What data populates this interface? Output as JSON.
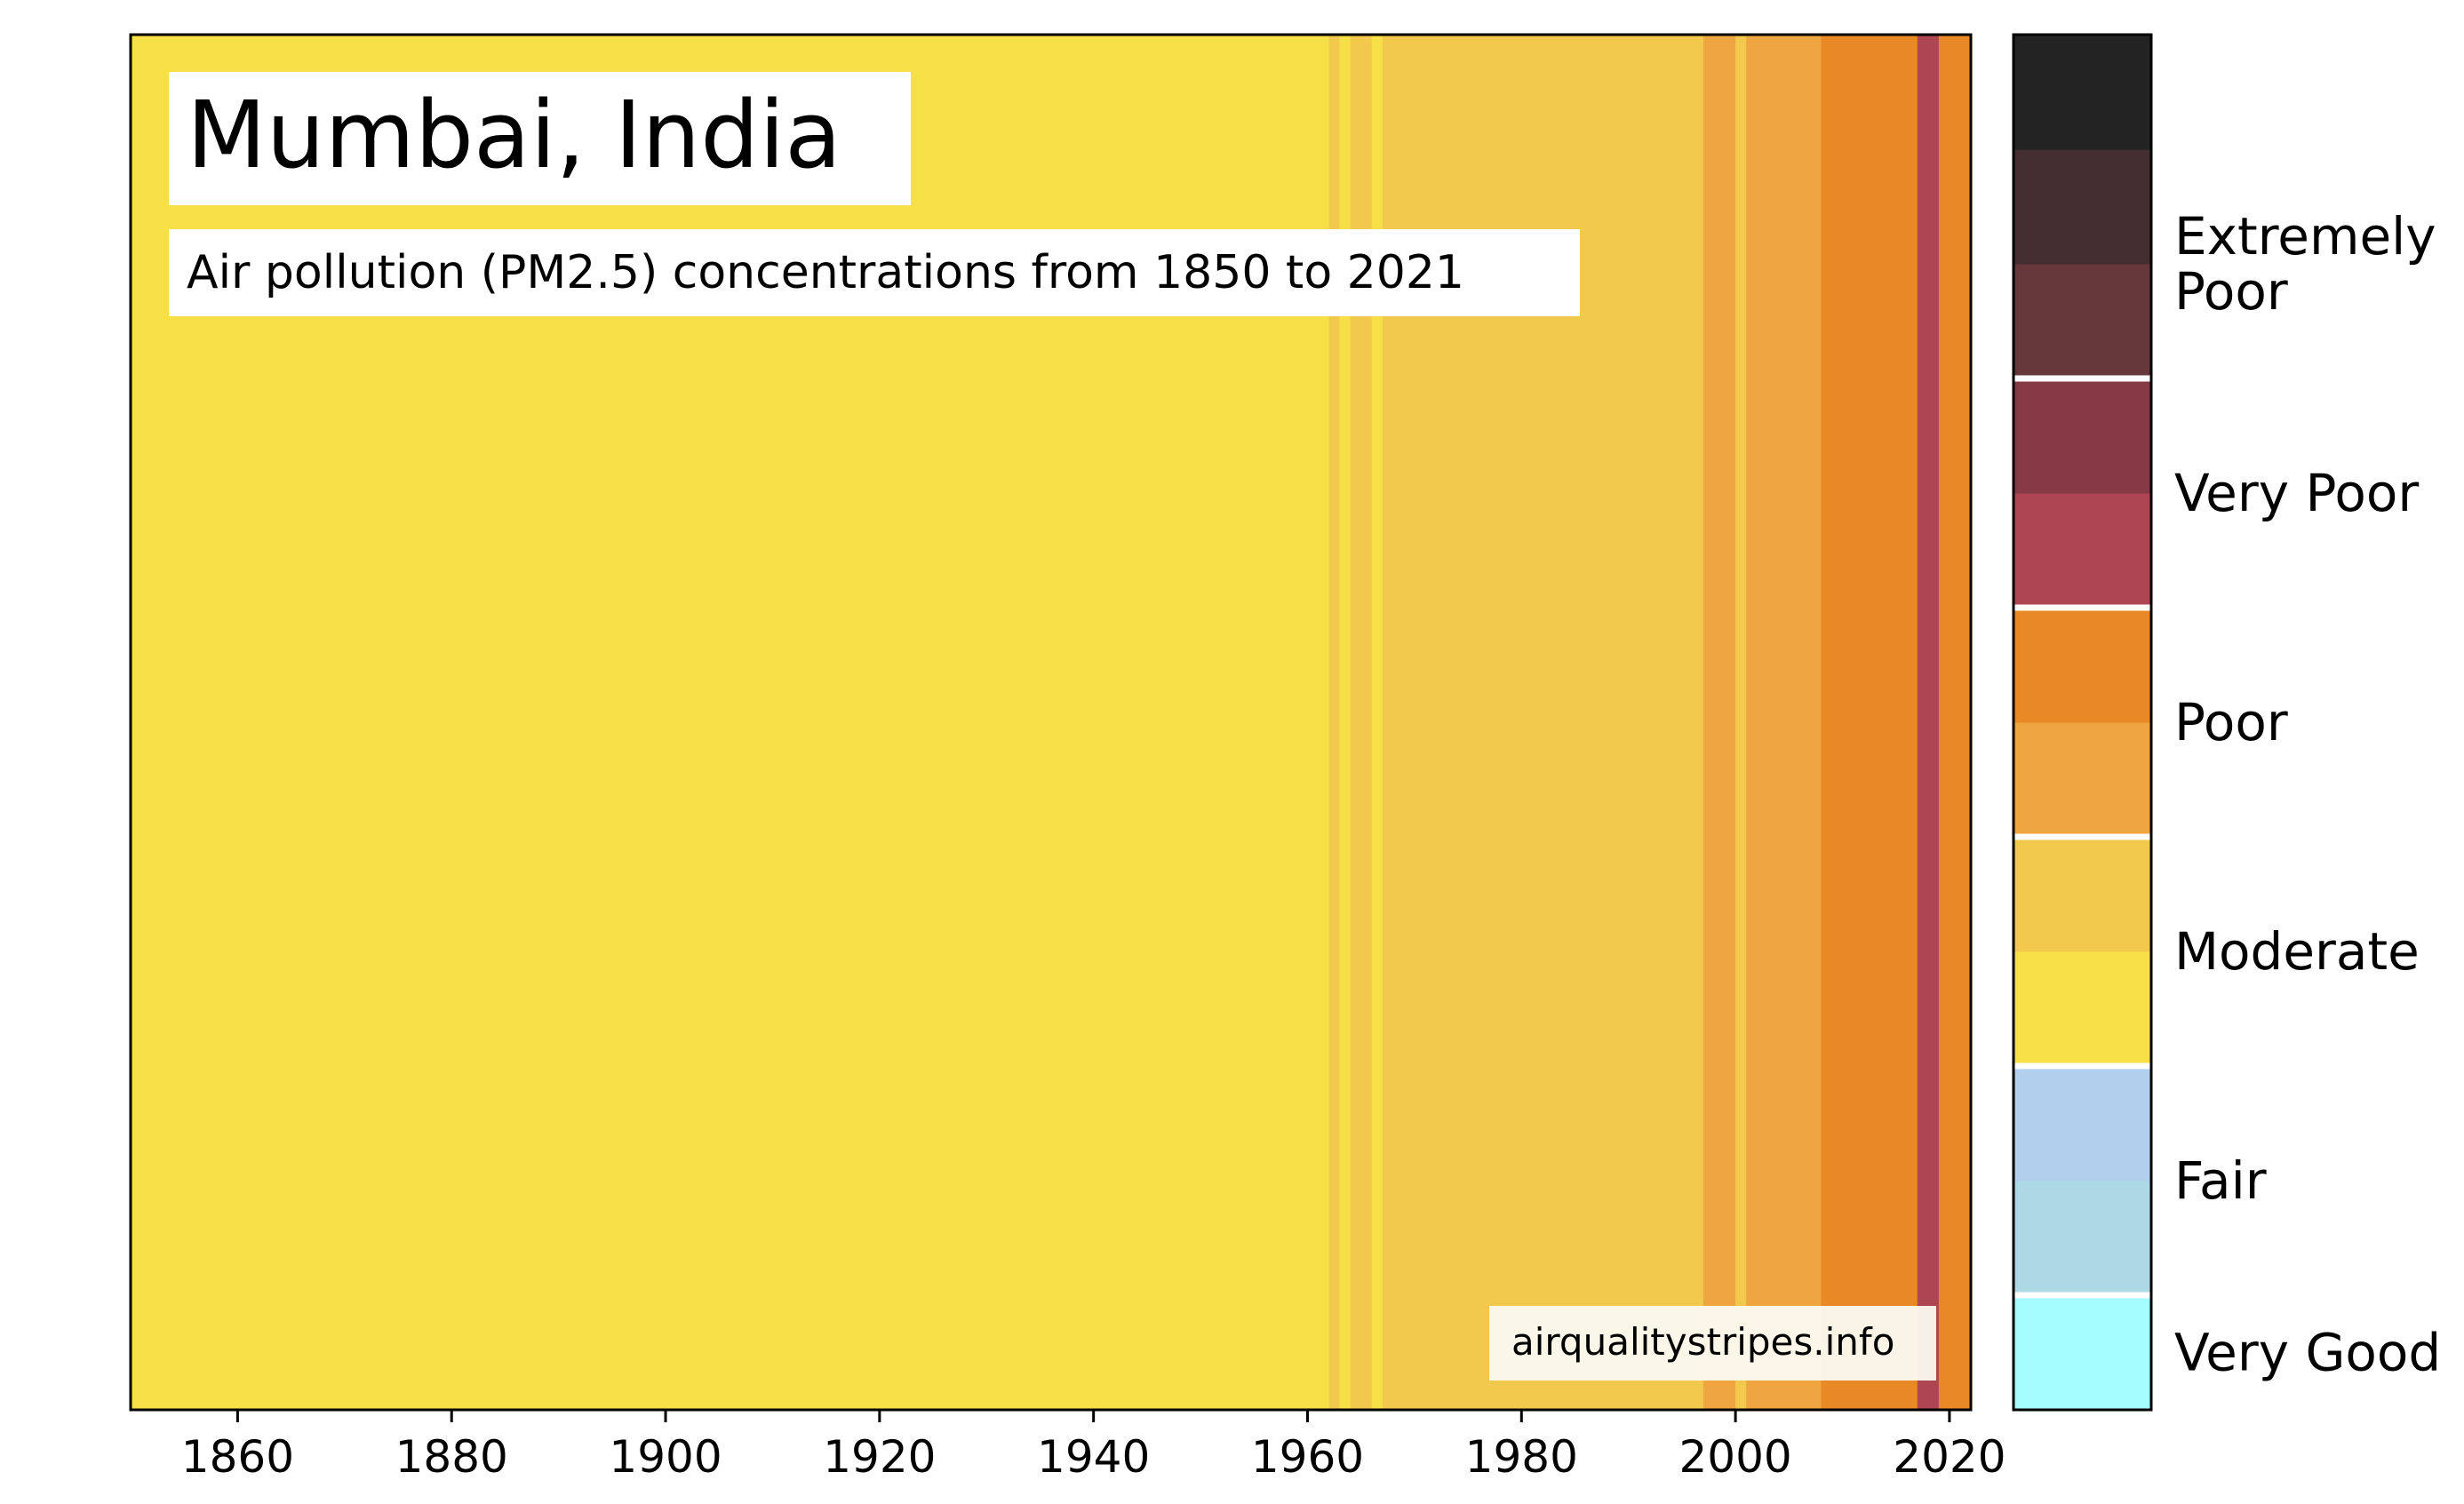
{
  "chart_data": {
    "type": "heatmap",
    "title": "Mumbai, India",
    "subtitle": "Air pollution (PM2.5) concentrations from 1850 to 2021",
    "source": "airqualitystripes.info",
    "x_start": 1850,
    "x_end": 2021,
    "xlim": [
      1850,
      2022
    ],
    "x_ticks": [
      "1860",
      "1880",
      "1900",
      "1920",
      "1940",
      "1960",
      "1980",
      "2000",
      "2020"
    ],
    "colors": {
      "very_good": "#a5fdff",
      "fair_1": "#add8e6",
      "fair_2": "#b2cfee",
      "moderate_1": "#f7df47",
      "moderate_2": "#f2c94c",
      "poor_1": "#efa640",
      "poor_2": "#e88826",
      "very_poor_1": "#ad4652",
      "very_poor_2": "#863a46",
      "extremely_poor_1": "#66383b",
      "extremely_poor_2": "#452e31",
      "extremely_poor_3": "#232323"
    },
    "stripes": [
      {
        "start": 1850,
        "end": 1962,
        "level": "moderate_1"
      },
      {
        "start": 1962,
        "end": 1963,
        "level": "moderate_2"
      },
      {
        "start": 1963,
        "end": 1964,
        "level": "moderate_1"
      },
      {
        "start": 1964,
        "end": 1966,
        "level": "moderate_2"
      },
      {
        "start": 1966,
        "end": 1967,
        "level": "moderate_1"
      },
      {
        "start": 1967,
        "end": 1997,
        "level": "moderate_2"
      },
      {
        "start": 1997,
        "end": 2000,
        "level": "poor_1"
      },
      {
        "start": 2000,
        "end": 2001,
        "level": "moderate_2"
      },
      {
        "start": 2001,
        "end": 2008,
        "level": "poor_1"
      },
      {
        "start": 2008,
        "end": 2017,
        "level": "poor_2"
      },
      {
        "start": 2017,
        "end": 2019,
        "level": "very_poor_1"
      },
      {
        "start": 2019,
        "end": 2022,
        "level": "poor_2"
      }
    ],
    "legend": {
      "scale": [
        "very_good",
        "fair_1",
        "fair_2",
        "moderate_1",
        "moderate_2",
        "poor_1",
        "poor_2",
        "very_poor_1",
        "very_poor_2",
        "extremely_poor_1",
        "extremely_poor_2",
        "extremely_poor_3"
      ],
      "categories": [
        {
          "label": "Very Good",
          "lines": [
            "Very Good"
          ],
          "from": 0,
          "to": 1
        },
        {
          "label": "Fair",
          "lines": [
            "Fair"
          ],
          "from": 1,
          "to": 3
        },
        {
          "label": "Moderate",
          "lines": [
            "Moderate"
          ],
          "from": 3,
          "to": 5
        },
        {
          "label": "Poor",
          "lines": [
            "Poor"
          ],
          "from": 5,
          "to": 7
        },
        {
          "label": "Very Poor",
          "lines": [
            "Very Poor"
          ],
          "from": 7,
          "to": 9
        },
        {
          "label": "Extremely Poor",
          "lines": [
            "Extremely",
            "Poor"
          ],
          "from": 9,
          "to": 11
        }
      ]
    }
  }
}
